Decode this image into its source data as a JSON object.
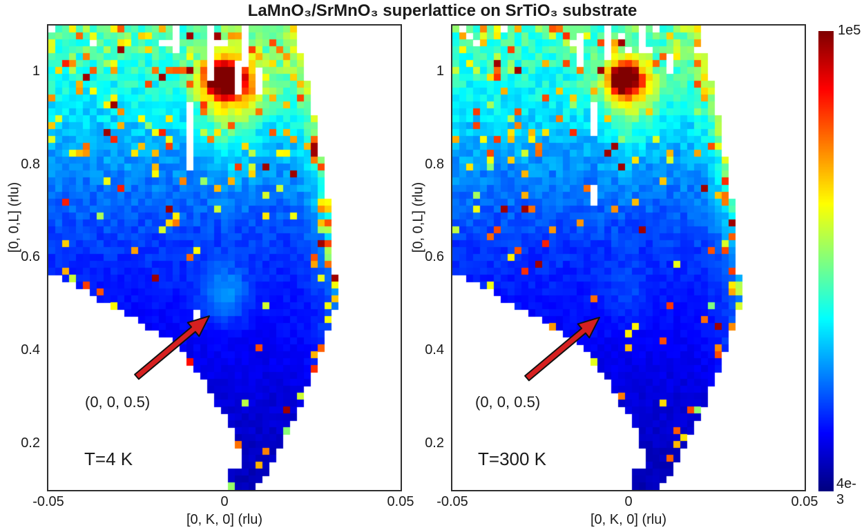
{
  "title": "LaMnO₃/SrMnO₃ superlattice on SrTiO₃ substrate",
  "colorbar": {
    "top_label": "1e5",
    "bottom_label": "4e-3",
    "colormap": "jet",
    "scale": "log",
    "min": 0.004,
    "max": 100000
  },
  "colors": {
    "arrow": "#d62020",
    "arrow_outline": "#111111",
    "axis_box": "#2e2e2e",
    "text": "#1a1a1a"
  },
  "grid": {
    "cols": 51,
    "rows": 67
  },
  "coverage": {
    "lower_left_boundary": [
      [
        0,
        0.527
      ],
      [
        0.216,
        0.62
      ],
      [
        0.367,
        0.69
      ],
      [
        0.457,
        0.784
      ],
      [
        0.51,
        0.853
      ],
      [
        0.545,
        0.92
      ],
      [
        0.549,
        1.02
      ]
    ],
    "right_boundary": [
      [
        0,
        0.7
      ],
      [
        0.17,
        0.75
      ],
      [
        0.32,
        0.784
      ],
      [
        0.47,
        0.81
      ],
      [
        0.6,
        0.818
      ],
      [
        0.72,
        0.765
      ],
      [
        0.84,
        0.706
      ],
      [
        0.93,
        0.647
      ],
      [
        1.0,
        0.59
      ]
    ]
  },
  "heatmap_params": {
    "t_profile": [
      [
        0.1,
        0.055
      ],
      [
        0.3,
        0.09
      ],
      [
        0.5,
        0.14
      ],
      [
        0.62,
        0.175
      ],
      [
        0.7,
        0.215
      ],
      [
        0.8,
        0.27
      ],
      [
        0.9,
        0.34
      ],
      [
        0.97,
        0.385
      ],
      [
        1.03,
        0.415
      ],
      [
        1.1,
        0.44
      ]
    ],
    "edge_glow": {
      "amp": 0.22,
      "decay": 0.035
    }
  },
  "chart_data": [
    {
      "id": "T4K",
      "type": "heatmap",
      "temperature_label": "T=4 K",
      "xlabel": "[0, K, 0] (rlu)",
      "ylabel": "[0, 0,L] (rlu)",
      "xlim": [
        -0.05,
        0.05
      ],
      "ylim": [
        0.1,
        1.1
      ],
      "xticks": [
        "-0.05",
        "0",
        "0.05"
      ],
      "yticks": [
        "1",
        "0.8",
        "0.6",
        "0.4",
        "0.2"
      ],
      "annotation_label": "(0, 0, 0.5)",
      "annotation_target": {
        "K": 0.0,
        "L": 0.5
      },
      "peaks": [
        {
          "name": "bragg-(0,0,1)",
          "K": 0.0,
          "L": 0.985,
          "amp": 0.62,
          "sx": 2.2,
          "sy": 1.7
        },
        {
          "name": "bragg-halo",
          "K": 0.003,
          "L": 0.97,
          "amp": 0.24,
          "sx": 4.2,
          "sy": 3.4
        },
        {
          "name": "bragg-plume",
          "K": 0.001,
          "L": 0.93,
          "amp": 0.13,
          "sx": 2.6,
          "sy": 7
        },
        {
          "name": "half-order-(0,0,0.5)",
          "K": 0.0,
          "L": 0.52,
          "amp": 0.13,
          "sx": 2.3,
          "sy": 2.8
        }
      ],
      "gaps": [
        {
          "K": -0.0132,
          "l1": 1.045,
          "l2": 1.115
        },
        {
          "K": -0.0049,
          "l1": 0.985,
          "l2": 1.115
        },
        {
          "K": 0.0033,
          "l1": 0.955,
          "l2": 1.02
        },
        {
          "K": 0.0065,
          "l1": 1.005,
          "l2": 1.115
        },
        {
          "K": 0.0094,
          "l1": 0.945,
          "l2": 1.005
        },
        {
          "K": -0.009,
          "l1": 0.79,
          "l2": 0.935
        },
        {
          "K": -0.0078,
          "l1": 0.44,
          "l2": 0.485
        }
      ],
      "seed": 7
    },
    {
      "id": "T300K",
      "type": "heatmap",
      "temperature_label": "T=300 K",
      "xlabel": "[0, K, 0] (rlu)",
      "ylabel": "[0, 0,L] (rlu)",
      "xlim": [
        -0.05,
        0.05
      ],
      "ylim": [
        0.1,
        1.1
      ],
      "xticks": [
        "-0.05",
        "0",
        "0.05"
      ],
      "yticks": [
        "1",
        "0.8",
        "0.6",
        "0.4",
        "0.2"
      ],
      "annotation_label": "(0, 0, 0.5)",
      "annotation_target": {
        "K": 0.0,
        "L": 0.5
      },
      "peaks": [
        {
          "name": "bragg-(0,0,1)",
          "K": -0.001,
          "L": 0.985,
          "amp": 0.66,
          "sx": 1.6,
          "sy": 1.5
        },
        {
          "name": "bragg-halo",
          "K": 0.0,
          "L": 0.97,
          "amp": 0.2,
          "sx": 3.6,
          "sy": 3.0
        },
        {
          "name": "bragg-plume",
          "K": -0.0005,
          "L": 0.93,
          "amp": 0.11,
          "sx": 2.3,
          "sy": 6
        },
        {
          "name": "half-order-(0,0,0.5)",
          "K": 0.0,
          "L": 0.52,
          "amp": 0.045,
          "sx": 2.3,
          "sy": 2.8
        }
      ],
      "gaps": [
        {
          "K": -0.0143,
          "l1": 1.005,
          "l2": 1.08
        },
        {
          "K": -0.0096,
          "l1": 0.865,
          "l2": 0.935
        },
        {
          "K": -0.0051,
          "l1": 1.02,
          "l2": 1.115
        },
        {
          "K": 0.012,
          "l1": 0.99,
          "l2": 1.04
        },
        {
          "K": -0.009,
          "l1": 0.705,
          "l2": 0.76
        },
        {
          "K": 0.004,
          "l1": 1.04,
          "l2": 1.115
        }
      ],
      "seed": 13
    }
  ]
}
